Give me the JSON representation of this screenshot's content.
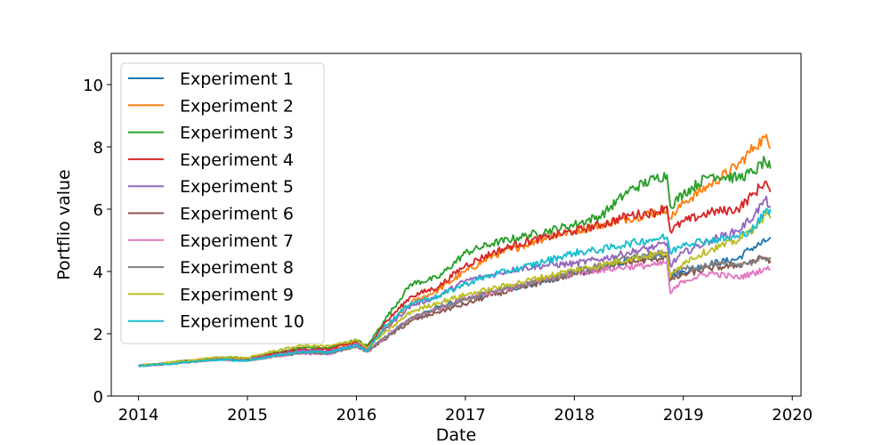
{
  "chart_data": {
    "type": "line",
    "title": "",
    "xlabel": "Date",
    "ylabel": "Portflio value",
    "xlim": [
      2013.75,
      2020.08
    ],
    "ylim": [
      0,
      11
    ],
    "xticks": [
      2014,
      2015,
      2016,
      2017,
      2018,
      2019,
      2020
    ],
    "xtick_labels": [
      "2014",
      "2015",
      "2016",
      "2017",
      "2018",
      "2019",
      "2020"
    ],
    "yticks": [
      0,
      2,
      4,
      6,
      8,
      10
    ],
    "ytick_labels": [
      "0",
      "2",
      "4",
      "6",
      "8",
      "10"
    ],
    "grid": false,
    "legend": {
      "position": "upper-left"
    },
    "x_unit": "year",
    "series": [
      {
        "name": "Experiment 1",
        "color": "#1f77b4",
        "points": [
          [
            2014.0,
            0.97
          ],
          [
            2014.25,
            1.03
          ],
          [
            2014.5,
            1.12
          ],
          [
            2014.75,
            1.2
          ],
          [
            2015.0,
            1.16
          ],
          [
            2015.25,
            1.3
          ],
          [
            2015.5,
            1.4
          ],
          [
            2015.75,
            1.36
          ],
          [
            2016.0,
            1.62
          ],
          [
            2016.1,
            1.45
          ],
          [
            2016.25,
            1.85
          ],
          [
            2016.5,
            2.5
          ],
          [
            2016.75,
            2.85
          ],
          [
            2017.0,
            3.1
          ],
          [
            2017.25,
            3.35
          ],
          [
            2017.5,
            3.5
          ],
          [
            2017.75,
            3.7
          ],
          [
            2018.0,
            3.95
          ],
          [
            2018.25,
            4.1
          ],
          [
            2018.5,
            4.35
          ],
          [
            2018.75,
            4.5
          ],
          [
            2018.85,
            4.6
          ],
          [
            2018.88,
            3.85
          ],
          [
            2019.0,
            4.0
          ],
          [
            2019.25,
            4.25
          ],
          [
            2019.5,
            4.4
          ],
          [
            2019.6,
            4.7
          ],
          [
            2019.75,
            4.95
          ],
          [
            2019.8,
            5.1
          ]
        ]
      },
      {
        "name": "Experiment 2",
        "color": "#ff7f0e",
        "points": [
          [
            2014.0,
            0.97
          ],
          [
            2014.25,
            1.05
          ],
          [
            2014.5,
            1.15
          ],
          [
            2014.75,
            1.22
          ],
          [
            2015.0,
            1.2
          ],
          [
            2015.25,
            1.35
          ],
          [
            2015.5,
            1.45
          ],
          [
            2015.75,
            1.45
          ],
          [
            2016.0,
            1.7
          ],
          [
            2016.1,
            1.5
          ],
          [
            2016.25,
            2.1
          ],
          [
            2016.5,
            3.0
          ],
          [
            2016.75,
            3.4
          ],
          [
            2017.0,
            4.0
          ],
          [
            2017.25,
            4.5
          ],
          [
            2017.5,
            4.8
          ],
          [
            2017.75,
            5.1
          ],
          [
            2018.0,
            5.3
          ],
          [
            2018.25,
            5.5
          ],
          [
            2018.5,
            5.7
          ],
          [
            2018.75,
            5.9
          ],
          [
            2018.85,
            6.0
          ],
          [
            2018.88,
            5.7
          ],
          [
            2019.0,
            6.2
          ],
          [
            2019.25,
            6.8
          ],
          [
            2019.5,
            7.4
          ],
          [
            2019.65,
            8.0
          ],
          [
            2019.75,
            8.3
          ],
          [
            2019.8,
            7.95
          ]
        ]
      },
      {
        "name": "Experiment 3",
        "color": "#2ca02c",
        "points": [
          [
            2014.0,
            0.98
          ],
          [
            2014.25,
            1.06
          ],
          [
            2014.5,
            1.15
          ],
          [
            2014.75,
            1.24
          ],
          [
            2015.0,
            1.22
          ],
          [
            2015.25,
            1.4
          ],
          [
            2015.5,
            1.55
          ],
          [
            2015.75,
            1.55
          ],
          [
            2016.0,
            1.8
          ],
          [
            2016.1,
            1.6
          ],
          [
            2016.25,
            2.4
          ],
          [
            2016.5,
            3.6
          ],
          [
            2016.75,
            3.8
          ],
          [
            2017.0,
            4.6
          ],
          [
            2017.25,
            4.9
          ],
          [
            2017.5,
            5.1
          ],
          [
            2017.75,
            5.3
          ],
          [
            2018.0,
            5.5
          ],
          [
            2018.25,
            5.8
          ],
          [
            2018.5,
            6.6
          ],
          [
            2018.75,
            7.0
          ],
          [
            2018.85,
            7.1
          ],
          [
            2018.88,
            6.1
          ],
          [
            2019.0,
            6.5
          ],
          [
            2019.25,
            7.1
          ],
          [
            2019.5,
            7.0
          ],
          [
            2019.65,
            7.2
          ],
          [
            2019.75,
            7.55
          ],
          [
            2019.8,
            7.3
          ]
        ]
      },
      {
        "name": "Experiment 4",
        "color": "#d62728",
        "points": [
          [
            2014.0,
            0.97
          ],
          [
            2014.25,
            1.05
          ],
          [
            2014.5,
            1.14
          ],
          [
            2014.75,
            1.22
          ],
          [
            2015.0,
            1.2
          ],
          [
            2015.25,
            1.35
          ],
          [
            2015.5,
            1.5
          ],
          [
            2015.75,
            1.5
          ],
          [
            2016.0,
            1.75
          ],
          [
            2016.1,
            1.55
          ],
          [
            2016.25,
            2.3
          ],
          [
            2016.5,
            3.2
          ],
          [
            2016.75,
            3.5
          ],
          [
            2017.0,
            4.2
          ],
          [
            2017.25,
            4.6
          ],
          [
            2017.5,
            4.9
          ],
          [
            2017.75,
            5.1
          ],
          [
            2018.0,
            5.3
          ],
          [
            2018.25,
            5.5
          ],
          [
            2018.5,
            5.8
          ],
          [
            2018.75,
            5.9
          ],
          [
            2018.85,
            6.1
          ],
          [
            2018.88,
            5.3
          ],
          [
            2019.0,
            5.6
          ],
          [
            2019.25,
            5.9
          ],
          [
            2019.5,
            6.0
          ],
          [
            2019.65,
            6.5
          ],
          [
            2019.75,
            6.9
          ],
          [
            2019.8,
            6.55
          ]
        ]
      },
      {
        "name": "Experiment 5",
        "color": "#9467bd",
        "points": [
          [
            2014.0,
            0.97
          ],
          [
            2014.25,
            1.04
          ],
          [
            2014.5,
            1.12
          ],
          [
            2014.75,
            1.2
          ],
          [
            2015.0,
            1.18
          ],
          [
            2015.25,
            1.32
          ],
          [
            2015.5,
            1.45
          ],
          [
            2015.75,
            1.44
          ],
          [
            2016.0,
            1.68
          ],
          [
            2016.1,
            1.5
          ],
          [
            2016.25,
            2.1
          ],
          [
            2016.5,
            2.9
          ],
          [
            2016.75,
            3.2
          ],
          [
            2017.0,
            3.7
          ],
          [
            2017.25,
            3.9
          ],
          [
            2017.5,
            4.1
          ],
          [
            2017.75,
            4.2
          ],
          [
            2018.0,
            4.25
          ],
          [
            2018.25,
            4.4
          ],
          [
            2018.5,
            4.6
          ],
          [
            2018.75,
            4.8
          ],
          [
            2018.85,
            4.9
          ],
          [
            2018.88,
            4.2
          ],
          [
            2019.0,
            4.6
          ],
          [
            2019.25,
            5.0
          ],
          [
            2019.5,
            5.3
          ],
          [
            2019.65,
            5.8
          ],
          [
            2019.75,
            6.3
          ],
          [
            2019.8,
            6.1
          ]
        ]
      },
      {
        "name": "Experiment 6",
        "color": "#8c564b",
        "points": [
          [
            2014.0,
            0.97
          ],
          [
            2014.25,
            1.03
          ],
          [
            2014.5,
            1.1
          ],
          [
            2014.75,
            1.18
          ],
          [
            2015.0,
            1.15
          ],
          [
            2015.25,
            1.28
          ],
          [
            2015.5,
            1.38
          ],
          [
            2015.75,
            1.36
          ],
          [
            2016.0,
            1.6
          ],
          [
            2016.1,
            1.42
          ],
          [
            2016.25,
            1.8
          ],
          [
            2016.5,
            2.4
          ],
          [
            2016.75,
            2.7
          ],
          [
            2017.0,
            2.95
          ],
          [
            2017.25,
            3.25
          ],
          [
            2017.5,
            3.45
          ],
          [
            2017.75,
            3.7
          ],
          [
            2018.0,
            3.9
          ],
          [
            2018.25,
            4.1
          ],
          [
            2018.5,
            4.3
          ],
          [
            2018.75,
            4.4
          ],
          [
            2018.85,
            4.5
          ],
          [
            2018.88,
            3.7
          ],
          [
            2019.0,
            3.9
          ],
          [
            2019.25,
            4.1
          ],
          [
            2019.5,
            4.2
          ],
          [
            2019.65,
            4.35
          ],
          [
            2019.75,
            4.45
          ],
          [
            2019.8,
            4.35
          ]
        ]
      },
      {
        "name": "Experiment 7",
        "color": "#e377c2",
        "points": [
          [
            2014.0,
            0.97
          ],
          [
            2014.25,
            1.02
          ],
          [
            2014.5,
            1.1
          ],
          [
            2014.75,
            1.17
          ],
          [
            2015.0,
            1.14
          ],
          [
            2015.25,
            1.27
          ],
          [
            2015.5,
            1.37
          ],
          [
            2015.75,
            1.35
          ],
          [
            2016.0,
            1.6
          ],
          [
            2016.1,
            1.42
          ],
          [
            2016.25,
            1.85
          ],
          [
            2016.5,
            2.5
          ],
          [
            2016.75,
            2.8
          ],
          [
            2017.0,
            3.15
          ],
          [
            2017.25,
            3.35
          ],
          [
            2017.5,
            3.55
          ],
          [
            2017.75,
            3.75
          ],
          [
            2018.0,
            3.95
          ],
          [
            2018.25,
            4.05
          ],
          [
            2018.5,
            4.15
          ],
          [
            2018.75,
            4.2
          ],
          [
            2018.85,
            4.3
          ],
          [
            2018.88,
            3.3
          ],
          [
            2019.0,
            3.7
          ],
          [
            2019.25,
            3.95
          ],
          [
            2019.5,
            3.8
          ],
          [
            2019.65,
            3.95
          ],
          [
            2019.75,
            4.1
          ],
          [
            2019.8,
            4.05
          ]
        ]
      },
      {
        "name": "Experiment 8",
        "color": "#7f7f7f",
        "points": [
          [
            2014.0,
            0.97
          ],
          [
            2014.25,
            1.03
          ],
          [
            2014.5,
            1.11
          ],
          [
            2014.75,
            1.18
          ],
          [
            2015.0,
            1.15
          ],
          [
            2015.25,
            1.29
          ],
          [
            2015.5,
            1.39
          ],
          [
            2015.75,
            1.37
          ],
          [
            2016.0,
            1.61
          ],
          [
            2016.1,
            1.43
          ],
          [
            2016.25,
            1.85
          ],
          [
            2016.5,
            2.5
          ],
          [
            2016.75,
            2.8
          ],
          [
            2017.0,
            3.1
          ],
          [
            2017.25,
            3.35
          ],
          [
            2017.5,
            3.55
          ],
          [
            2017.75,
            3.75
          ],
          [
            2018.0,
            4.0
          ],
          [
            2018.25,
            4.2
          ],
          [
            2018.5,
            4.45
          ],
          [
            2018.75,
            4.55
          ],
          [
            2018.85,
            4.6
          ],
          [
            2018.88,
            3.9
          ],
          [
            2019.0,
            4.1
          ],
          [
            2019.25,
            4.2
          ],
          [
            2019.5,
            4.25
          ],
          [
            2019.65,
            4.3
          ],
          [
            2019.75,
            4.4
          ],
          [
            2019.8,
            4.45
          ]
        ]
      },
      {
        "name": "Experiment 9",
        "color": "#bcbd22",
        "points": [
          [
            2014.0,
            0.97
          ],
          [
            2014.25,
            1.06
          ],
          [
            2014.5,
            1.15
          ],
          [
            2014.75,
            1.25
          ],
          [
            2015.0,
            1.22
          ],
          [
            2015.25,
            1.45
          ],
          [
            2015.5,
            1.62
          ],
          [
            2015.75,
            1.6
          ],
          [
            2016.0,
            1.8
          ],
          [
            2016.1,
            1.55
          ],
          [
            2016.25,
            2.0
          ],
          [
            2016.5,
            2.7
          ],
          [
            2016.75,
            3.0
          ],
          [
            2017.0,
            3.25
          ],
          [
            2017.25,
            3.45
          ],
          [
            2017.5,
            3.65
          ],
          [
            2017.75,
            3.85
          ],
          [
            2018.0,
            4.05
          ],
          [
            2018.25,
            4.2
          ],
          [
            2018.5,
            4.4
          ],
          [
            2018.75,
            4.55
          ],
          [
            2018.85,
            4.6
          ],
          [
            2018.88,
            3.8
          ],
          [
            2019.0,
            4.3
          ],
          [
            2019.25,
            4.7
          ],
          [
            2019.5,
            5.0
          ],
          [
            2019.65,
            5.4
          ],
          [
            2019.75,
            5.8
          ],
          [
            2019.8,
            5.7
          ]
        ]
      },
      {
        "name": "Experiment 10",
        "color": "#17becf",
        "points": [
          [
            2014.0,
            0.97
          ],
          [
            2014.25,
            1.02
          ],
          [
            2014.5,
            1.1
          ],
          [
            2014.75,
            1.17
          ],
          [
            2015.0,
            1.12
          ],
          [
            2015.25,
            1.3
          ],
          [
            2015.5,
            1.42
          ],
          [
            2015.75,
            1.4
          ],
          [
            2016.0,
            1.62
          ],
          [
            2016.1,
            1.45
          ],
          [
            2016.25,
            2.2
          ],
          [
            2016.5,
            3.0
          ],
          [
            2016.75,
            3.2
          ],
          [
            2017.0,
            3.6
          ],
          [
            2017.25,
            3.9
          ],
          [
            2017.5,
            4.1
          ],
          [
            2017.75,
            4.35
          ],
          [
            2018.0,
            4.6
          ],
          [
            2018.25,
            4.7
          ],
          [
            2018.5,
            4.9
          ],
          [
            2018.75,
            5.05
          ],
          [
            2018.85,
            5.1
          ],
          [
            2018.88,
            4.6
          ],
          [
            2019.0,
            4.9
          ],
          [
            2019.25,
            5.0
          ],
          [
            2019.5,
            5.1
          ],
          [
            2019.65,
            5.4
          ],
          [
            2019.75,
            5.9
          ],
          [
            2019.8,
            6.0
          ]
        ]
      }
    ]
  }
}
